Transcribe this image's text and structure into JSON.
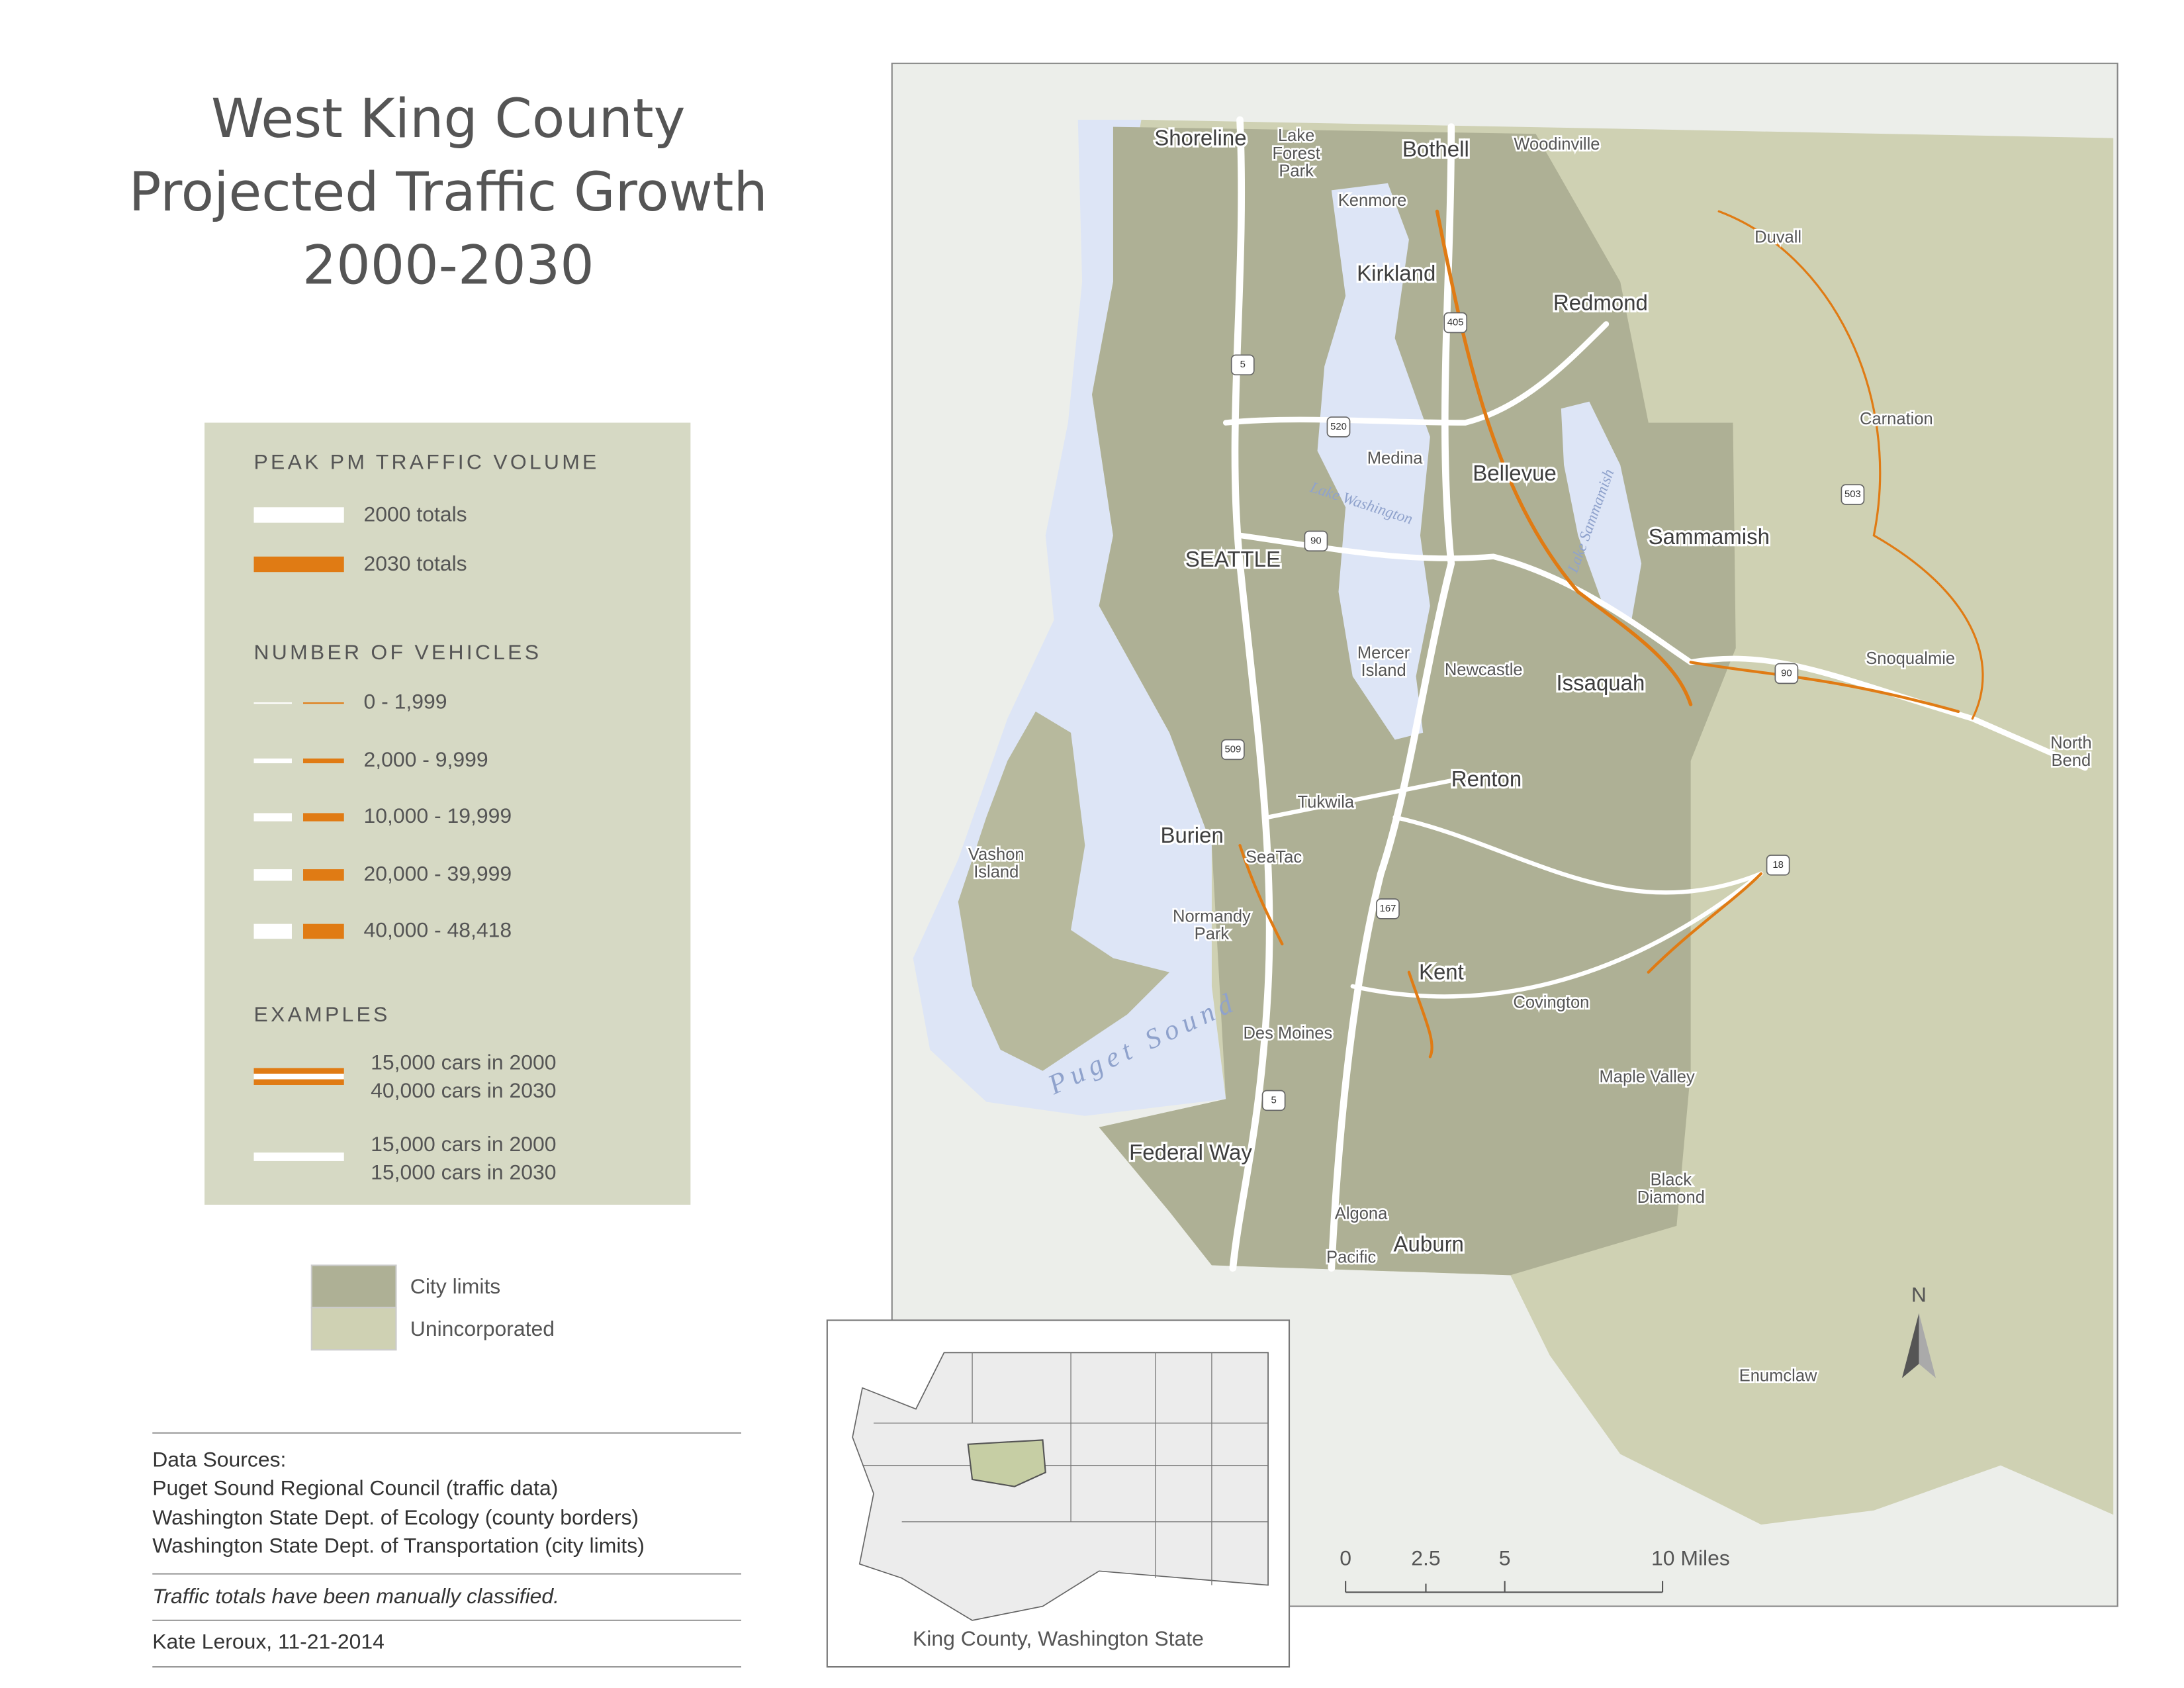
{
  "title": [
    "West King County",
    "Projected Traffic Growth",
    "2000-2030"
  ],
  "legend": {
    "traffic_heading": "PEAK PM TRAFFIC VOLUME",
    "traffic_items": [
      "2000 totals",
      "2030 totals"
    ],
    "vehicles_heading": "NUMBER OF VEHICLES",
    "vehicle_classes": [
      "0 - 1,999",
      "2,000 - 9,999",
      "10,000 - 19,999",
      "20,000 - 39,999",
      "40,000 - 48,418"
    ],
    "examples_heading": "EXAMPLES",
    "examples": [
      [
        "15,000 cars in 2000",
        "40,000 cars in 2030"
      ],
      [
        "15,000 cars in 2000",
        "15,000 cars in 2030"
      ]
    ]
  },
  "area_legend": [
    "City limits",
    "Unincorporated"
  ],
  "sources": {
    "heading": "Data Sources:",
    "items": [
      "Puget Sound Regional Council (traffic data)",
      "Washington State Dept. of Ecology (county borders)",
      "Washington State Dept. of Transportation (city limits)"
    ],
    "note": "Traffic totals have been manually classified.",
    "credit": "Kate Leroux, 11-21-2014"
  },
  "inset_caption": "King County, Washington State",
  "scale_bar": [
    "0",
    "2.5",
    "5",
    "10 Miles"
  ],
  "north": "N",
  "places": [
    "Shoreline",
    [
      "Lake",
      "Forest",
      "Park"
    ],
    "Bothell",
    "Woodinville",
    "Kenmore",
    "Duvall",
    "Kirkland",
    "Redmond",
    "Carnation",
    "Medina",
    "Bellevue",
    "Sammamish",
    "SEATTLE",
    [
      "Mercer",
      "Island"
    ],
    "Newcastle",
    "Issaquah",
    "Snoqualmie",
    [
      "North",
      "Bend"
    ],
    "Renton",
    "Tukwila",
    "Burien",
    "SeaTac",
    [
      "Vashon",
      "Island"
    ],
    [
      "Normandy",
      "Park"
    ],
    "Kent",
    "Covington",
    "Des Moines",
    "Maple Valley",
    "Federal Way",
    [
      "Black",
      "Diamond"
    ],
    "Algona",
    "Auburn",
    "Pacific",
    "Enumclaw"
  ],
  "water": [
    "Lake Washington",
    "Lake Sammamish",
    "Puget Sound"
  ],
  "shields": [
    "5",
    "405",
    "520",
    "90",
    "509",
    "167",
    "18",
    "503",
    "5",
    "90"
  ]
}
